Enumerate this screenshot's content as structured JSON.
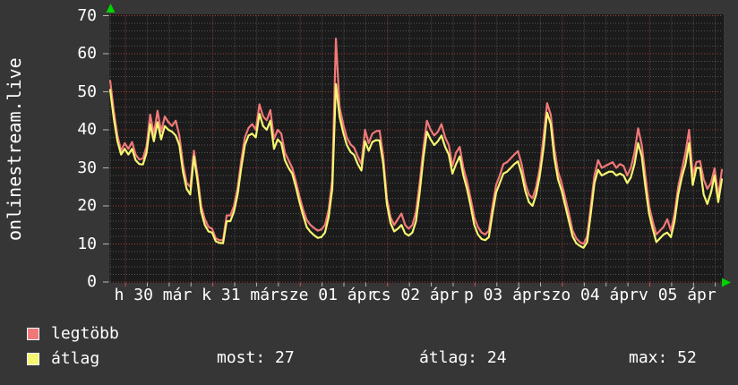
{
  "title": "onlinestream.live",
  "legend": {
    "series": [
      {
        "label": "legtöbb",
        "color": "#f17878"
      },
      {
        "label": "átlag",
        "color": "#f6f672"
      }
    ],
    "stats": [
      {
        "label": "most",
        "value": "27",
        "text": "most: 27"
      },
      {
        "label": "átlag",
        "value": "24",
        "text": "átlag: 24"
      },
      {
        "label": "max",
        "value": "52",
        "text": "max: 52"
      }
    ]
  },
  "chart_data": {
    "type": "line",
    "title": "onlinestream.live",
    "x_axis": {
      "unit": "hours_from_start",
      "range": [
        0,
        168
      ],
      "first_midnight_h": 4.2,
      "minor_grid_every_h": 6,
      "major_grid_every_h": 24,
      "day_labels": [
        {
          "label": "h 30 már",
          "center_h": 11.8
        },
        {
          "label": "k 31 már",
          "center_h": 35.8
        },
        {
          "label": "sze 01 ápr",
          "center_h": 59.8
        },
        {
          "label": "cs 02 ápr",
          "center_h": 83.8
        },
        {
          "label": "p 03 ápr",
          "center_h": 107.8
        },
        {
          "label": "szo 04 ápr",
          "center_h": 131.8
        },
        {
          "label": "v 05 ápr",
          "center_h": 155.8
        }
      ]
    },
    "y_axis": {
      "range": [
        0,
        70
      ],
      "major_step": 10,
      "minor_step": 2,
      "ticks": [
        0,
        10,
        20,
        30,
        40,
        50,
        60,
        70
      ]
    },
    "colors": {
      "bg_outer": "#363636",
      "bg_plot": "#1b1b1b",
      "grid_minor": "rgba(255,255,255,0.26)",
      "grid_major": "rgba(255,85,85,0.60)",
      "tick_minor": "#b5b5b5",
      "tick_major": "#d05050",
      "axis_arrow": "#00d400",
      "text": "#ffffff"
    },
    "series": [
      {
        "name": "legtöbb",
        "color": "#f17878",
        "values": [
          52.9,
          45,
          38.5,
          34.5,
          36.5,
          35,
          36.8,
          33.5,
          32.2,
          32.5,
          35.7,
          44,
          38.8,
          45,
          39.5,
          43.5,
          42,
          41,
          42.4,
          38.5,
          31,
          26,
          25,
          34.5,
          28,
          20,
          16.5,
          14.5,
          14,
          11.5,
          11,
          11,
          17.5,
          17.5,
          20,
          24.7,
          32,
          38,
          40.5,
          41.5,
          40,
          46.7,
          43.5,
          42.5,
          45.2,
          37.6,
          40,
          39,
          34,
          32,
          30,
          26.5,
          22.5,
          19,
          16.3,
          15,
          14.2,
          13.5,
          13.8,
          15,
          19,
          27,
          64,
          46,
          41.5,
          38,
          36.2,
          35.3,
          33,
          31,
          40,
          36.5,
          39,
          39.6,
          39.8,
          33,
          22,
          17,
          15,
          16.5,
          18,
          15,
          14,
          15,
          18.5,
          26,
          35,
          42.4,
          40,
          38.5,
          39.5,
          41.5,
          38,
          36,
          30.5,
          34,
          35.5,
          30,
          26.5,
          22,
          17,
          14.5,
          13,
          12.5,
          13.5,
          20,
          25.5,
          28,
          31,
          31.5,
          32.5,
          33.5,
          34.4,
          31,
          26,
          23,
          22,
          25,
          30,
          38,
          47,
          44,
          35,
          29,
          26,
          22,
          18,
          13.5,
          11.5,
          10.5,
          10,
          12,
          20,
          28,
          32,
          30,
          30.5,
          31,
          31.5,
          30,
          31,
          30.5,
          28,
          30,
          34,
          40.4,
          36,
          28,
          20,
          16,
          12.5,
          13.5,
          14.5,
          16.5,
          13.5,
          18,
          25,
          29.5,
          34,
          40,
          28,
          31.5,
          31.8,
          27,
          24.5,
          26,
          29.9,
          22.5,
          29.5
        ]
      },
      {
        "name": "átlag",
        "color": "#f6f672",
        "values": [
          50.5,
          43,
          37,
          33.5,
          35,
          33.5,
          35,
          32,
          31,
          30.9,
          34,
          41.5,
          37,
          42,
          37.5,
          41,
          40,
          39.5,
          38.5,
          36,
          29,
          24.5,
          23,
          33,
          26.5,
          18.5,
          15,
          13.3,
          13,
          10.7,
          10.3,
          10.2,
          16,
          16,
          18.5,
          23,
          30,
          36,
          38.5,
          39,
          38,
          44.2,
          41,
          40,
          42.4,
          35,
          37.5,
          36.5,
          32,
          30,
          28.5,
          25,
          21,
          17.5,
          14.4,
          13.2,
          12.3,
          11.6,
          11.8,
          13,
          17,
          24.5,
          52,
          43.5,
          39.3,
          36,
          34.2,
          33.4,
          31,
          29.3,
          37,
          34.5,
          36.8,
          37.3,
          37.2,
          31,
          20.5,
          15.5,
          13.3,
          14,
          15,
          12.8,
          12.2,
          13,
          16,
          23.5,
          32.5,
          39.5,
          37.5,
          36,
          37,
          38.5,
          35.5,
          33.5,
          28.5,
          31,
          33,
          28,
          24.5,
          20,
          15,
          12.5,
          11.3,
          11,
          11.8,
          18,
          23.5,
          26,
          28.5,
          29,
          30,
          31,
          31.7,
          28.5,
          24,
          21,
          20,
          23,
          28,
          35,
          44.5,
          41.5,
          32.5,
          27,
          24,
          20,
          16,
          12,
          10.2,
          9.5,
          9,
          10.5,
          18,
          26,
          29.5,
          28,
          28.5,
          29,
          29,
          28,
          28.5,
          28,
          26,
          27.5,
          31,
          36.5,
          33,
          25,
          18,
          14,
          10.5,
          11.5,
          12.5,
          13,
          11.8,
          16,
          23,
          27.5,
          31,
          36.5,
          25.5,
          30,
          30,
          23,
          20.5,
          23.5,
          28,
          21,
          27
        ]
      }
    ],
    "stats": {
      "most": 27,
      "atlag": 24,
      "max": 52
    }
  }
}
